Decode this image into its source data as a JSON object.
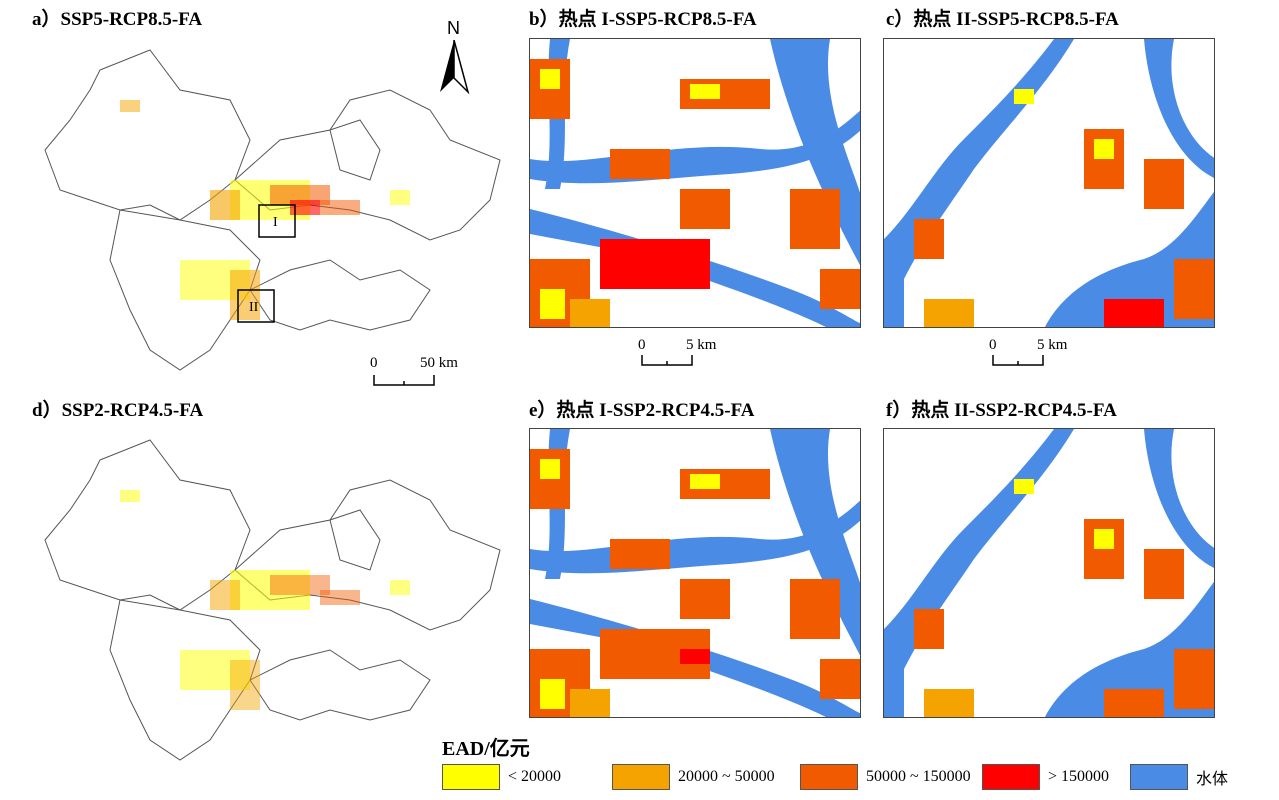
{
  "panels": [
    {
      "id": "a",
      "title": "a）SSP5-RCP8.5-FA"
    },
    {
      "id": "b",
      "title": "b）热点 I-SSP5-RCP8.5-FA"
    },
    {
      "id": "c",
      "title": "c）热点 II-SSP5-RCP8.5-FA"
    },
    {
      "id": "d",
      "title": "d）SSP2-RCP4.5-FA"
    },
    {
      "id": "e",
      "title": "e）热点 I-SSP2-RCP4.5-FA"
    },
    {
      "id": "f",
      "title": "f）热点 II-SSP2-RCP4.5-FA"
    }
  ],
  "hotspots": {
    "one": "I",
    "two": "II"
  },
  "north": "N",
  "scales": {
    "region": {
      "start": "0",
      "end": "50 km"
    },
    "hotspot1": {
      "start": "0",
      "end": "5 km"
    },
    "hotspot2": {
      "start": "0",
      "end": "5 km"
    }
  },
  "legend": {
    "title": "EAD/亿元",
    "items": [
      {
        "label": "< 20000",
        "color": "#FFFF00"
      },
      {
        "label": "20000 ~ 50000",
        "color": "#F5A300"
      },
      {
        "label": "50000 ~ 150000",
        "color": "#F25A00"
      },
      {
        "label": "> 150000",
        "color": "#FF0000"
      },
      {
        "label": "水体",
        "color": "#4A8BE6"
      }
    ]
  }
}
